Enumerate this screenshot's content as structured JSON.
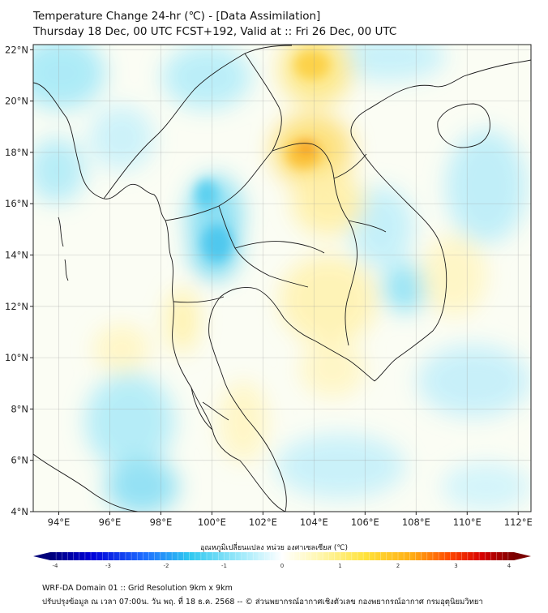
{
  "header": {
    "title": "Temperature Change 24-hr (℃) - [Data Assimilation]",
    "subtitle": "Thursday 18 Dec, 00 UTC FCST+192, Valid at :: Fri 26 Dec, 00 UTC"
  },
  "axes": {
    "lon_ticks": [
      94,
      96,
      98,
      100,
      102,
      104,
      106,
      108,
      110,
      112
    ],
    "lon_labels": [
      "94°E",
      "96°E",
      "98°E",
      "100°E",
      "102°E",
      "104°E",
      "106°E",
      "108°E",
      "110°E",
      "112°E"
    ],
    "lat_ticks": [
      4,
      6,
      8,
      10,
      12,
      14,
      16,
      18,
      20,
      22
    ],
    "lat_labels": [
      "4°N",
      "6°N",
      "8°N",
      "10°N",
      "12°N",
      "14°N",
      "16°N",
      "18°N",
      "20°N",
      "22°N"
    ],
    "lon_range": [
      93,
      112.5
    ],
    "lat_range": [
      4,
      22.2
    ]
  },
  "colorbar": {
    "label": "อุณหภูมิเปลี่ยนแปลง หน่วย องศาเซลเซียส (℃)",
    "ticks": [
      "-4",
      "-3",
      "-2",
      "-1",
      "0",
      "1",
      "2",
      "3",
      "4"
    ],
    "range": [
      -4,
      4
    ],
    "colors": [
      "#00007a",
      "#0000d8",
      "#1e6cff",
      "#2ec8f0",
      "#a8ecfb",
      "#ffffff",
      "#fff7b0",
      "#ffe23a",
      "#ffad14",
      "#ff4a00",
      "#d80000",
      "#7a0000"
    ]
  },
  "footer": {
    "line1": "WRF-DA Domain 01 :: Grid Resolution 9km x 9km",
    "line2": "ปรับปรุงข้อมูล ณ เวลา 07:00น. วัน พฤ. ที่ 18 ธ.ค. 2568 -- © ส่วนพยากรณ์อากาศเชิงตัวเลข กองพยากรณ์อากาศ กรมอุตุนิยมวิทยา"
  }
}
